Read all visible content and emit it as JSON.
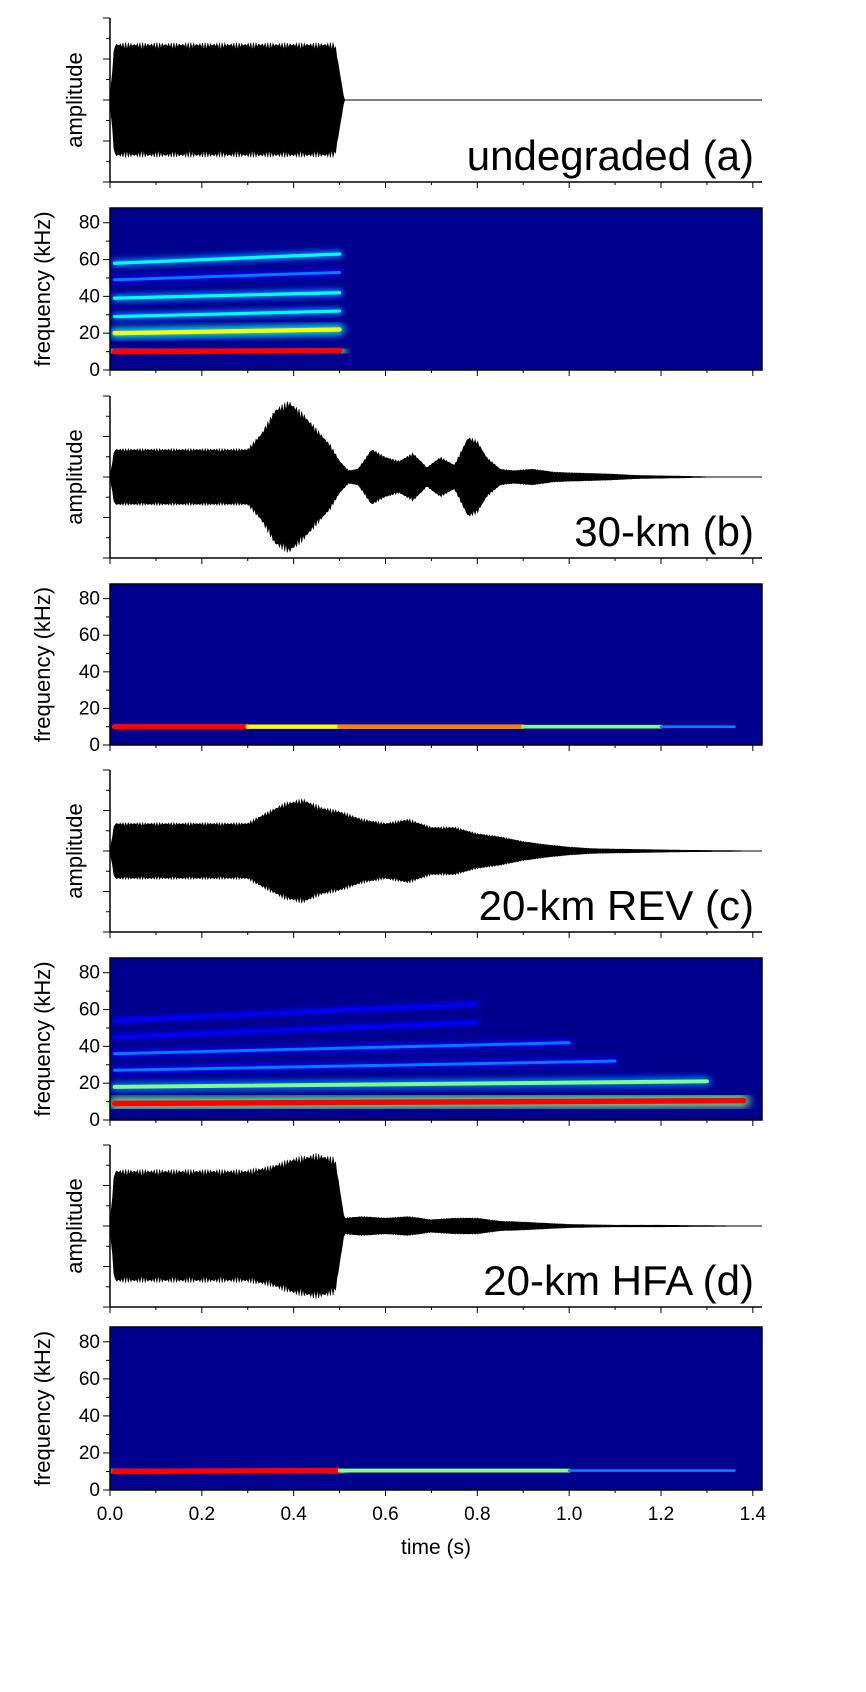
{
  "chart_data": {
    "type": "panels",
    "x_axis": {
      "label": "time (s)",
      "range": [
        0.0,
        1.42
      ],
      "ticks": [
        0.0,
        0.2,
        0.4,
        0.6,
        0.8,
        1.0,
        1.2,
        1.4
      ],
      "tick_labels": [
        "0.0",
        "0.2",
        "0.4",
        "0.6",
        "0.8",
        "1.0",
        "1.2",
        "1.4"
      ]
    },
    "panels": [
      {
        "kind": "waveform",
        "ylabel": "amplitude",
        "label": "undegraded (a)",
        "envelope": [
          [
            0.0,
            0.0
          ],
          [
            0.01,
            0.7
          ],
          [
            0.49,
            0.7
          ],
          [
            0.51,
            0.0
          ],
          [
            1.42,
            0.0
          ]
        ]
      },
      {
        "kind": "spectrogram",
        "ylabel": "frequency (kHz)",
        "y_range": [
          0,
          88
        ],
        "y_ticks": [
          0,
          20,
          40,
          60,
          80
        ],
        "y_tick_labels": [
          "0",
          "20",
          "40",
          "60",
          "80"
        ],
        "harmonics": [
          {
            "t_start": 0.01,
            "t_end": 0.5,
            "f_start": 10,
            "f_end": 10.5,
            "strength": 1.0
          },
          {
            "t_start": 0.01,
            "t_end": 0.5,
            "f_start": 20,
            "f_end": 22,
            "strength": 0.7
          },
          {
            "t_start": 0.01,
            "t_end": 0.5,
            "f_start": 29,
            "f_end": 32,
            "strength": 0.4
          },
          {
            "t_start": 0.01,
            "t_end": 0.5,
            "f_start": 39,
            "f_end": 42,
            "strength": 0.45
          },
          {
            "t_start": 0.01,
            "t_end": 0.5,
            "f_start": 49,
            "f_end": 53,
            "strength": 0.35
          },
          {
            "t_start": 0.01,
            "t_end": 0.5,
            "f_start": 58,
            "f_end": 63,
            "strength": 0.45
          }
        ]
      },
      {
        "kind": "waveform",
        "ylabel": "amplitude",
        "label": "30-km (b)",
        "envelope": [
          [
            0.0,
            0.0
          ],
          [
            0.01,
            0.35
          ],
          [
            0.3,
            0.35
          ],
          [
            0.33,
            0.55
          ],
          [
            0.36,
            0.85
          ],
          [
            0.39,
            0.95
          ],
          [
            0.42,
            0.8
          ],
          [
            0.45,
            0.6
          ],
          [
            0.48,
            0.4
          ],
          [
            0.5,
            0.2
          ],
          [
            0.52,
            0.08
          ],
          [
            0.54,
            0.1
          ],
          [
            0.57,
            0.35
          ],
          [
            0.6,
            0.25
          ],
          [
            0.63,
            0.2
          ],
          [
            0.66,
            0.3
          ],
          [
            0.69,
            0.12
          ],
          [
            0.72,
            0.25
          ],
          [
            0.75,
            0.15
          ],
          [
            0.78,
            0.5
          ],
          [
            0.8,
            0.45
          ],
          [
            0.82,
            0.25
          ],
          [
            0.85,
            0.1
          ],
          [
            0.88,
            0.08
          ],
          [
            0.92,
            0.1
          ],
          [
            0.97,
            0.06
          ],
          [
            1.02,
            0.05
          ],
          [
            1.08,
            0.04
          ],
          [
            1.15,
            0.02
          ],
          [
            1.25,
            0.01
          ],
          [
            1.32,
            0.0
          ],
          [
            1.42,
            0.0
          ]
        ]
      },
      {
        "kind": "spectrogram",
        "ylabel": "frequency (kHz)",
        "y_range": [
          0,
          88
        ],
        "y_ticks": [
          0,
          20,
          40,
          60,
          80
        ],
        "y_tick_labels": [
          "0",
          "20",
          "40",
          "60",
          "80"
        ],
        "harmonics": [
          {
            "t_start": 0.01,
            "t_end": 0.3,
            "f_start": 10,
            "f_end": 10,
            "strength": 1.0
          },
          {
            "t_start": 0.3,
            "t_end": 0.5,
            "f_start": 10,
            "f_end": 10,
            "strength": 0.7
          },
          {
            "t_start": 0.5,
            "t_end": 0.9,
            "f_start": 10,
            "f_end": 10,
            "strength": 0.8
          },
          {
            "t_start": 0.9,
            "t_end": 1.2,
            "f_start": 10,
            "f_end": 10,
            "strength": 0.55
          },
          {
            "t_start": 1.2,
            "t_end": 1.36,
            "f_start": 10,
            "f_end": 10,
            "strength": 0.3
          }
        ]
      },
      {
        "kind": "waveform",
        "ylabel": "amplitude",
        "label": "20-km REV (c)",
        "envelope": [
          [
            0.0,
            0.0
          ],
          [
            0.01,
            0.35
          ],
          [
            0.3,
            0.35
          ],
          [
            0.33,
            0.45
          ],
          [
            0.38,
            0.6
          ],
          [
            0.42,
            0.65
          ],
          [
            0.46,
            0.55
          ],
          [
            0.5,
            0.5
          ],
          [
            0.55,
            0.4
          ],
          [
            0.6,
            0.35
          ],
          [
            0.65,
            0.4
          ],
          [
            0.7,
            0.3
          ],
          [
            0.75,
            0.3
          ],
          [
            0.8,
            0.22
          ],
          [
            0.85,
            0.18
          ],
          [
            0.9,
            0.12
          ],
          [
            0.95,
            0.08
          ],
          [
            1.0,
            0.05
          ],
          [
            1.05,
            0.03
          ],
          [
            1.15,
            0.02
          ],
          [
            1.25,
            0.01
          ],
          [
            1.35,
            0.005
          ],
          [
            1.42,
            0.0
          ]
        ]
      },
      {
        "kind": "spectrogram",
        "ylabel": "frequency (kHz)",
        "y_range": [
          0,
          88
        ],
        "y_ticks": [
          0,
          20,
          40,
          60,
          80
        ],
        "y_tick_labels": [
          "0",
          "20",
          "40",
          "60",
          "80"
        ],
        "harmonics": [
          {
            "t_start": 0.01,
            "t_end": 1.38,
            "f_start": 9,
            "f_end": 10.5,
            "strength": 1.0
          },
          {
            "t_start": 0.01,
            "t_end": 1.3,
            "f_start": 18,
            "f_end": 21,
            "strength": 0.6
          },
          {
            "t_start": 0.01,
            "t_end": 1.1,
            "f_start": 27,
            "f_end": 32,
            "strength": 0.35
          },
          {
            "t_start": 0.01,
            "t_end": 1.0,
            "f_start": 36,
            "f_end": 42,
            "strength": 0.35
          },
          {
            "t_start": 0.01,
            "t_end": 0.8,
            "f_start": 45,
            "f_end": 53,
            "strength": 0.2
          },
          {
            "t_start": 0.01,
            "t_end": 0.8,
            "f_start": 54,
            "f_end": 63,
            "strength": 0.2
          }
        ]
      },
      {
        "kind": "waveform",
        "ylabel": "amplitude",
        "label": "20-km HFA (d)",
        "envelope": [
          [
            0.0,
            0.0
          ],
          [
            0.01,
            0.7
          ],
          [
            0.3,
            0.7
          ],
          [
            0.35,
            0.75
          ],
          [
            0.4,
            0.85
          ],
          [
            0.45,
            0.9
          ],
          [
            0.49,
            0.85
          ],
          [
            0.51,
            0.1
          ],
          [
            0.55,
            0.12
          ],
          [
            0.6,
            0.1
          ],
          [
            0.65,
            0.12
          ],
          [
            0.7,
            0.08
          ],
          [
            0.75,
            0.1
          ],
          [
            0.8,
            0.1
          ],
          [
            0.85,
            0.06
          ],
          [
            0.9,
            0.05
          ],
          [
            1.0,
            0.02
          ],
          [
            1.1,
            0.01
          ],
          [
            1.2,
            0.01
          ],
          [
            1.3,
            0.005
          ],
          [
            1.42,
            0.0
          ]
        ]
      },
      {
        "kind": "spectrogram",
        "ylabel": "frequency (kHz)",
        "y_range": [
          0,
          88
        ],
        "y_ticks": [
          0,
          20,
          40,
          60,
          80
        ],
        "y_tick_labels": [
          "0",
          "20",
          "40",
          "60",
          "80"
        ],
        "harmonics": [
          {
            "t_start": 0.01,
            "t_end": 0.5,
            "f_start": 10,
            "f_end": 10.5,
            "strength": 1.0
          },
          {
            "t_start": 0.5,
            "t_end": 1.0,
            "f_start": 10.5,
            "f_end": 10.5,
            "strength": 0.6
          },
          {
            "t_start": 1.0,
            "t_end": 1.36,
            "f_start": 10.5,
            "f_end": 10.5,
            "strength": 0.3
          }
        ]
      }
    ],
    "colors": {
      "spectrogram_background": "#00008f",
      "waveform": "#000000",
      "colormap": [
        "#00008f",
        "#0000ff",
        "#0080ff",
        "#00ffff",
        "#80ff80",
        "#ffff00",
        "#ff8000",
        "#ff0000"
      ]
    }
  }
}
